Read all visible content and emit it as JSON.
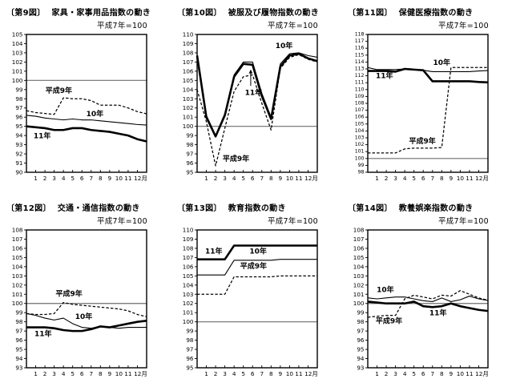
{
  "colors": {
    "ink": "#000000",
    "ref_line": "#6e6e6e",
    "background": "#ffffff"
  },
  "chart_data": [
    {
      "type": "line",
      "fig_label": "〔第9図〕",
      "title": "家具・家事用品指数の動き",
      "unit_note": "平成7年=100",
      "ylim": [
        90,
        105
      ],
      "ytick_step": 1,
      "ref_line": 100,
      "x_tick_labels": [
        "1",
        "2",
        "3",
        "4",
        "5",
        "6",
        "7",
        "8",
        "9",
        "10",
        "11",
        "12月"
      ],
      "series": [
        {
          "name": "平成9年",
          "line": "dashed",
          "values": [
            96.7,
            96.5,
            96.4,
            96.3,
            98.1,
            98.0,
            98.0,
            97.8,
            97.3,
            97.3,
            97.3,
            97.0,
            96.6
          ],
          "label": {
            "x": 3.5,
            "y": 98.8
          }
        },
        {
          "name": "10年",
          "line": "thin",
          "values": [
            96.2,
            96.1,
            95.9,
            95.8,
            95.7,
            95.8,
            95.7,
            95.7,
            95.6,
            95.5,
            95.4,
            95.3,
            95.2
          ],
          "label": {
            "x": 7.4,
            "y": 96.3
          }
        },
        {
          "name": "11年",
          "line": "thick",
          "values": [
            95.0,
            94.9,
            94.8,
            94.6,
            94.6,
            94.8,
            94.8,
            94.6,
            94.5,
            94.4,
            94.2,
            94.0,
            93.6
          ],
          "label": {
            "x": 1.7,
            "y": 93.9
          }
        }
      ]
    },
    {
      "type": "line",
      "fig_label": "〔第10図〕",
      "title": "被服及び履物指数の動き",
      "unit_note": "平成7年=100",
      "ylim": [
        95,
        110
      ],
      "ytick_step": 1,
      "ref_line": 100,
      "x_tick_labels": [
        "1",
        "2",
        "3",
        "4",
        "5",
        "6",
        "7",
        "8",
        "9",
        "10",
        "11",
        "12月"
      ],
      "series": [
        {
          "name": "平成9年",
          "line": "dashed",
          "values": [
            104.0,
            100.5,
            95.7,
            99.8,
            103.8,
            105.4,
            105.6,
            102.5,
            99.6,
            106.3,
            107.5,
            107.8,
            107.3
          ],
          "label": {
            "x": 4.2,
            "y": 96.4
          }
        },
        {
          "name": "10年",
          "line": "thin",
          "values": [
            107.3,
            101.2,
            99.0,
            101.4,
            105.6,
            107.0,
            107.0,
            103.6,
            101.0,
            106.8,
            107.9,
            108.0,
            107.7
          ],
          "label": {
            "x": 9.4,
            "y": 108.7
          }
        },
        {
          "name": "11年",
          "line": "thick",
          "values": [
            107.7,
            101.0,
            98.9,
            101.2,
            105.4,
            106.8,
            106.7,
            103.3,
            100.8,
            106.5,
            107.7,
            107.9,
            107.4
          ],
          "label": {
            "x": 6.1,
            "y": 103.6
          },
          "arrow": {
            "x": 5.8,
            "from_y": 104.4,
            "to_y": 106.2
          }
        }
      ]
    },
    {
      "type": "line",
      "fig_label": "〔第11図〕",
      "title": "保健医療指数の動き",
      "unit_note": "平成7年=100",
      "ylim": [
        98,
        118
      ],
      "ytick_step": 1,
      "ref_line": 100,
      "x_tick_labels": [
        "1",
        "2",
        "3",
        "4",
        "5",
        "6",
        "7",
        "8",
        "9",
        "10",
        "11",
        "12月"
      ],
      "series": [
        {
          "name": "平成9年",
          "line": "dashed",
          "values": [
            100.8,
            100.8,
            100.8,
            100.8,
            101.4,
            101.5,
            101.5,
            101.5,
            101.6,
            113.2,
            113.2,
            113.2,
            113.2
          ],
          "label": {
            "x": 5.9,
            "y": 102.4
          }
        },
        {
          "name": "10年",
          "line": "thin",
          "values": [
            113.2,
            112.9,
            112.9,
            112.9,
            113.0,
            112.9,
            112.8,
            112.6,
            112.6,
            112.6,
            112.6,
            112.6,
            112.7
          ],
          "label": {
            "x": 8.0,
            "y": 113.8
          }
        },
        {
          "name": "11年",
          "line": "thick",
          "values": [
            112.7,
            112.7,
            112.7,
            112.6,
            113.0,
            112.9,
            112.8,
            111.2,
            111.2,
            111.2,
            111.2,
            111.2,
            111.1
          ],
          "label": {
            "x": 1.8,
            "y": 111.9
          }
        }
      ]
    },
    {
      "type": "line",
      "fig_label": "〔第12図〕",
      "title": "交通・通信指数の動き",
      "unit_note": "平成7年=100",
      "ylim": [
        93,
        108
      ],
      "ytick_step": 1,
      "ref_line": 100,
      "x_tick_labels": [
        "1",
        "2",
        "3",
        "4",
        "5",
        "6",
        "7",
        "8",
        "9",
        "10",
        "11",
        "12月"
      ],
      "series": [
        {
          "name": "平成9年",
          "line": "dashed",
          "values": [
            98.9,
            98.8,
            98.8,
            98.9,
            100.1,
            99.9,
            99.8,
            99.7,
            99.6,
            99.5,
            99.4,
            99.2,
            98.8
          ],
          "label": {
            "x": 4.6,
            "y": 101.0
          }
        },
        {
          "name": "10年",
          "line": "thin",
          "values": [
            98.9,
            98.7,
            98.4,
            98.2,
            98.4,
            97.8,
            97.4,
            97.3,
            97.5,
            97.4,
            97.3,
            97.4,
            97.4
          ],
          "label": {
            "x": 6.2,
            "y": 98.5
          }
        },
        {
          "name": "11年",
          "line": "thick",
          "values": [
            97.4,
            97.4,
            97.4,
            97.3,
            97.1,
            97.0,
            97.0,
            97.2,
            97.5,
            97.4,
            97.6,
            97.8,
            98.0
          ],
          "label": {
            "x": 1.8,
            "y": 96.6
          }
        }
      ]
    },
    {
      "type": "line",
      "fig_label": "〔第13図〕",
      "title": "教育指数の動き",
      "unit_note": "平成7年=100",
      "ylim": [
        95,
        110
      ],
      "ytick_step": 1,
      "ref_line": 100,
      "x_tick_labels": [
        "1",
        "2",
        "3",
        "4",
        "5",
        "6",
        "7",
        "8",
        "9",
        "10",
        "11",
        "12月"
      ],
      "series": [
        {
          "name": "平成9年",
          "line": "dashed",
          "values": [
            103.0,
            103.0,
            103.0,
            103.0,
            104.9,
            104.9,
            104.9,
            104.9,
            104.9,
            105.0,
            105.0,
            105.0,
            105.0
          ],
          "label": {
            "x": 6.1,
            "y": 106.0
          }
        },
        {
          "name": "10年",
          "line": "thin",
          "values": [
            105.1,
            105.1,
            105.1,
            105.1,
            106.7,
            106.7,
            106.7,
            106.7,
            106.7,
            106.8,
            106.8,
            106.8,
            106.8
          ],
          "label": {
            "x": 6.6,
            "y": 107.6
          }
        },
        {
          "name": "11年",
          "line": "thick",
          "values": [
            106.8,
            106.8,
            106.8,
            106.8,
            108.3,
            108.3,
            108.3,
            108.3,
            108.3,
            108.3,
            108.3,
            108.3,
            108.3
          ],
          "label": {
            "x": 1.8,
            "y": 107.6
          }
        }
      ]
    },
    {
      "type": "line",
      "fig_label": "〔第14図〕",
      "title": "教養娯楽指数の動き",
      "unit_note": "平成7年=100",
      "ylim": [
        93,
        108
      ],
      "ytick_step": 1,
      "ref_line": 100,
      "x_tick_labels": [
        "1",
        "2",
        "3",
        "4",
        "5",
        "6",
        "7",
        "8",
        "9",
        "10",
        "11",
        "12月"
      ],
      "series": [
        {
          "name": "平成9年",
          "line": "dashed",
          "values": [
            98.5,
            98.6,
            98.7,
            98.7,
            100.5,
            100.9,
            100.7,
            100.5,
            100.9,
            100.8,
            101.4,
            101.0,
            100.6
          ],
          "label": {
            "x": 2.3,
            "y": 98.0
          }
        },
        {
          "name": "10年",
          "line": "thin",
          "values": [
            100.6,
            100.5,
            100.6,
            100.7,
            100.7,
            100.5,
            100.3,
            100.2,
            100.6,
            100.2,
            100.4,
            100.8,
            100.5
          ],
          "label": {
            "x": 1.9,
            "y": 101.4
          }
        },
        {
          "name": "11年",
          "line": "thick",
          "values": [
            100.2,
            100.1,
            100.0,
            100.0,
            100.0,
            100.2,
            99.7,
            99.6,
            99.7,
            100.0,
            99.7,
            99.5,
            99.3
          ],
          "label": {
            "x": 7.6,
            "y": 98.9
          }
        }
      ]
    }
  ]
}
